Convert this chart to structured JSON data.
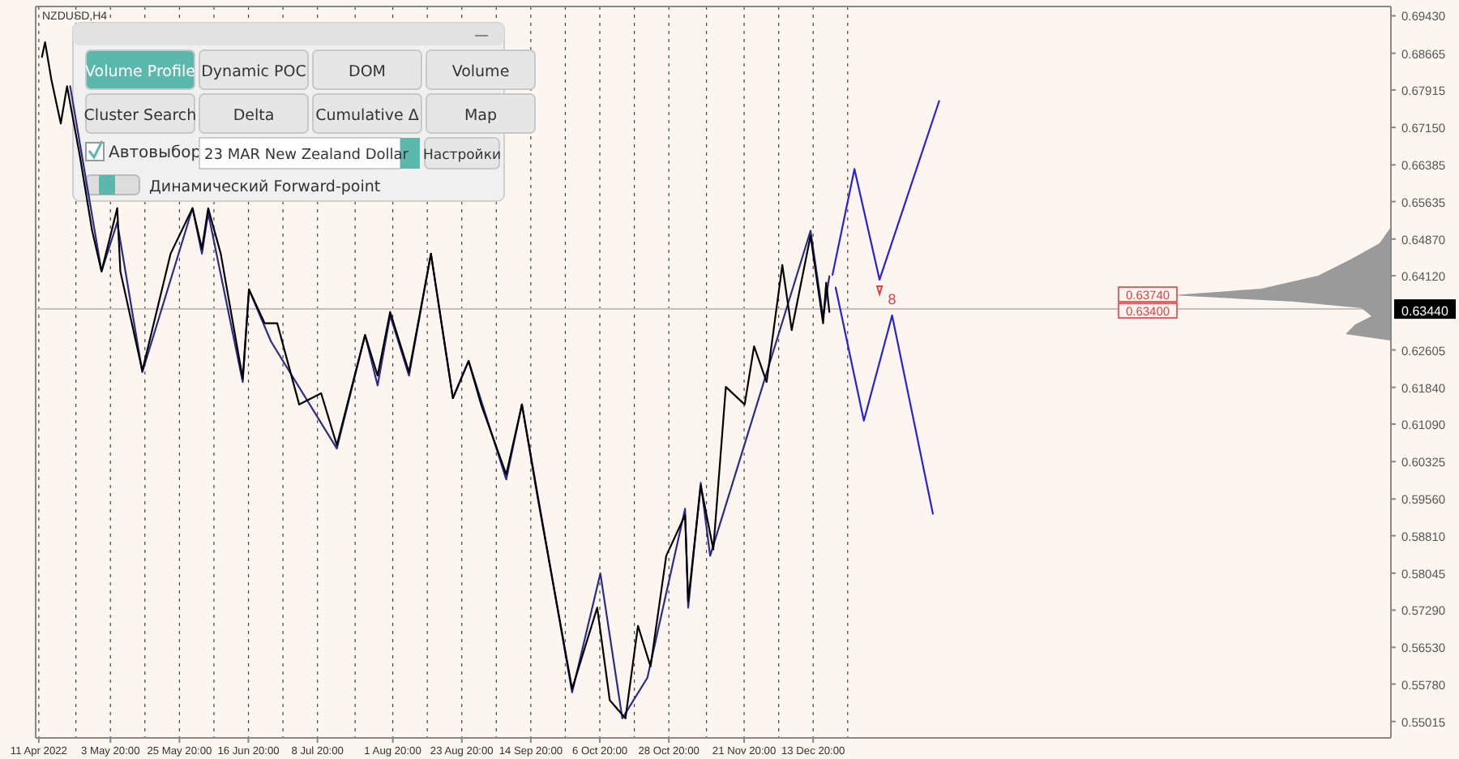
{
  "chart_data": {
    "type": "line",
    "title": "NZDUSD,H4",
    "x": [
      "2022-04-12",
      "2022-04-13",
      "2022-04-15",
      "2022-04-18",
      "2022-04-20",
      "2022-04-24",
      "2022-04-28",
      "2022-05-01",
      "2022-05-06",
      "2022-05-07",
      "2022-05-14",
      "2022-05-23",
      "2022-05-30",
      "2022-06-02",
      "2022-06-04",
      "2022-06-08",
      "2022-06-15",
      "2022-06-17",
      "2022-06-22",
      "2022-06-26",
      "2022-07-03",
      "2022-07-10",
      "2022-07-15",
      "2022-07-24",
      "2022-07-28",
      "2022-08-01",
      "2022-08-07",
      "2022-08-14",
      "2022-08-21",
      "2022-08-26",
      "2022-08-30",
      "2022-09-07",
      "2022-09-12",
      "2022-09-17",
      "2022-09-28",
      "2022-10-06",
      "2022-10-10",
      "2022-10-15",
      "2022-10-19",
      "2022-10-23",
      "2022-10-28",
      "2022-11-03",
      "2022-11-04",
      "2022-11-08",
      "2022-11-12",
      "2022-11-16",
      "2022-11-22",
      "2022-11-25",
      "2022-11-29",
      "2022-12-04",
      "2022-12-07",
      "2022-12-13",
      "2022-12-17",
      "2022-12-18",
      "2022-12-19"
    ],
    "series": [
      {
        "color": "#000000",
        "values": [
          0.6859,
          0.6889,
          0.6813,
          0.6723,
          0.6799,
          0.666,
          0.6504,
          0.6421,
          0.655,
          0.6421,
          0.6218,
          0.6457,
          0.655,
          0.6467,
          0.655,
          0.6457,
          0.6202,
          0.6384,
          0.6315,
          0.6315,
          0.6149,
          0.6172,
          0.6066,
          0.6291,
          0.6208,
          0.6338,
          0.6215,
          0.6457,
          0.6162,
          0.6238,
          0.6149,
          0.6006,
          0.6149,
          0.596,
          0.5568,
          0.5734,
          0.5545,
          0.5508,
          0.5697,
          0.5614,
          0.584,
          0.5923,
          0.5747,
          0.5983,
          0.5853,
          0.6185,
          0.6149,
          0.6268,
          0.6195,
          0.6434,
          0.6301,
          0.6494,
          0.6315,
          0.6398,
          0.6338
        ]
      },
      {
        "color": "#2b2b8a",
        "x": [
          "2022-04-21",
          "2022-05-01",
          "2022-05-06",
          "2022-05-14",
          "2022-05-30",
          "2022-06-02",
          "2022-06-04",
          "2022-06-15",
          "2022-06-17",
          "2022-06-24",
          "2022-07-15",
          "2022-07-24",
          "2022-07-28",
          "2022-08-01",
          "2022-08-07",
          "2022-08-14",
          "2022-08-21",
          "2022-08-26",
          "2022-09-07",
          "2022-09-12",
          "2022-09-28",
          "2022-10-07",
          "2022-10-14",
          "2022-10-22",
          "2022-11-03",
          "2022-11-04",
          "2022-11-08",
          "2022-11-11",
          "2022-12-13",
          "2022-12-17",
          "2022-12-19"
        ],
        "values": [
          0.6799,
          0.6421,
          0.6521,
          0.6215,
          0.655,
          0.6457,
          0.654,
          0.6195,
          0.6384,
          0.6278,
          0.6059,
          0.6291,
          0.6188,
          0.6331,
          0.6208,
          0.6457,
          0.6162,
          0.6238,
          0.5996,
          0.6149,
          0.5561,
          0.5804,
          0.5508,
          0.5591,
          0.5936,
          0.5734,
          0.5989,
          0.584,
          0.6504,
          0.6328,
          0.6411
        ]
      },
      {
        "color": "#2323d8",
        "x": [
          "2022-12-20",
          "2022-12-27",
          "2023-01-04",
          "2023-01-23"
        ],
        "values": [
          0.6414,
          0.663,
          0.6404,
          0.6769
        ]
      },
      {
        "color": "#2323d8",
        "x": [
          "2022-12-21",
          "2022-12-30",
          "2023-01-08",
          "2023-01-21"
        ],
        "values": [
          0.6388,
          0.6116,
          0.6331,
          0.5926
        ]
      }
    ],
    "xlim": [
      "2022-04-10",
      "2023-06-16"
    ],
    "xticks": [
      {
        "value": "2022-04-11",
        "label": "11 Apr 2022"
      },
      {
        "value": "2022-04-22T20:00",
        "label": null
      },
      {
        "value": "2022-05-03T20:00",
        "label": "3 May 20:00"
      },
      {
        "value": "2022-05-14T20:00",
        "label": null
      },
      {
        "value": "2022-05-25T20:00",
        "label": "25 May 20:00"
      },
      {
        "value": "2022-06-05T20:00",
        "label": null
      },
      {
        "value": "2022-06-16T20:00",
        "label": "16 Jun 20:00"
      },
      {
        "value": "2022-06-27T20:00",
        "label": null
      },
      {
        "value": "2022-07-08T20:00",
        "label": "8 Jul 20:00"
      },
      {
        "value": "2022-07-20T20:00",
        "label": null
      },
      {
        "value": "2022-08-01T20:00",
        "label": "1 Aug 20:00"
      },
      {
        "value": "2022-08-12T20:00",
        "label": null
      },
      {
        "value": "2022-08-23T20:00",
        "label": "23 Aug 20:00"
      },
      {
        "value": "2022-09-03T20:00",
        "label": null
      },
      {
        "value": "2022-09-14T20:00",
        "label": "14 Sep 20:00"
      },
      {
        "value": "2022-09-25T20:00",
        "label": null
      },
      {
        "value": "2022-10-06T20:00",
        "label": "6 Oct 20:00"
      },
      {
        "value": "2022-10-17T20:00",
        "label": null
      },
      {
        "value": "2022-10-28T20:00",
        "label": "28 Oct 20:00"
      },
      {
        "value": "2022-11-09T20:00",
        "label": null
      },
      {
        "value": "2022-11-21T20:00",
        "label": "21 Nov 20:00"
      },
      {
        "value": "2022-12-02T20:00",
        "label": null
      },
      {
        "value": "2022-12-13T20:00",
        "label": "13 Dec 20:00"
      },
      {
        "value": "2022-12-24T20:00",
        "label": null
      }
    ],
    "ylim": [
      0.5468,
      0.6962
    ],
    "yticks": [
      {
        "value": 0.6943,
        "label": "0.69430"
      },
      {
        "value": 0.68665,
        "label": "0.68665"
      },
      {
        "value": 0.67915,
        "label": "0.67915"
      },
      {
        "value": 0.6715,
        "label": "0.67150"
      },
      {
        "value": 0.66385,
        "label": "0.66385"
      },
      {
        "value": 0.65635,
        "label": "0.65635"
      },
      {
        "value": 0.6487,
        "label": "0.64870"
      },
      {
        "value": 0.6412,
        "label": "0.64120"
      },
      {
        "value": 0.62605,
        "label": "0.62605"
      },
      {
        "value": 0.6184,
        "label": "0.61840"
      },
      {
        "value": 0.6109,
        "label": "0.61090"
      },
      {
        "value": 0.60325,
        "label": "0.60325"
      },
      {
        "value": 0.5956,
        "label": "0.59560"
      },
      {
        "value": 0.5881,
        "label": "0.58810"
      },
      {
        "value": 0.58045,
        "label": "0.58045"
      },
      {
        "value": 0.5729,
        "label": "0.57290"
      },
      {
        "value": 0.5653,
        "label": "0.56530"
      },
      {
        "value": 0.5578,
        "label": "0.55780"
      },
      {
        "value": 0.55015,
        "label": "0.55015"
      }
    ],
    "grid": "x",
    "marker": "none",
    "line_style": "solid",
    "ref_lines": [
      {
        "axis": "y",
        "value": 0.6344,
        "label": "0.63440",
        "color": "#c8c0b8"
      }
    ],
    "annotations": [
      "0.63740",
      "0.63400",
      "8",
      "Volume Profile",
      "Dynamic POC",
      "DOM",
      "Volume",
      "Cluster Search",
      "Delta",
      "Cumulative Δ",
      "Map",
      "Автовыбор",
      "23 MAR New Zealand Dollar",
      "Настройки",
      "Динамический Forward-point"
    ]
  }
}
